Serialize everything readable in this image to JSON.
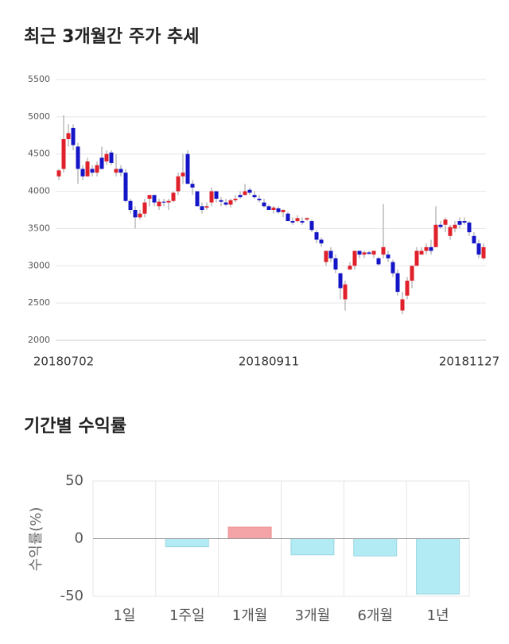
{
  "chart_data": [
    {
      "type": "candlestick",
      "title": "최근 3개월간 주가 추세",
      "categories": [
        null,
        "20180702",
        null,
        null,
        null,
        null,
        null,
        null,
        null,
        null,
        null,
        null,
        null,
        null,
        null,
        null,
        null,
        null,
        null,
        null,
        null,
        null,
        null,
        null,
        null,
        null,
        null,
        null,
        null,
        null,
        null,
        null,
        null,
        null,
        null,
        null,
        null,
        null,
        null,
        null,
        null,
        null,
        null,
        null,
        "20180911",
        null,
        null,
        null,
        null,
        null,
        null,
        null,
        null,
        null,
        null,
        null,
        null,
        null,
        null,
        null,
        null,
        null,
        null,
        null,
        null,
        null,
        null,
        null,
        null,
        null,
        null,
        null,
        null,
        null,
        null,
        null,
        null,
        null,
        null,
        null,
        null,
        null,
        null,
        null,
        null,
        null,
        "20181127",
        null,
        null,
        null
      ],
      "open": [
        4200,
        4300,
        4700,
        4850,
        4600,
        4300,
        4200,
        4300,
        4250,
        4450,
        4400,
        4520,
        4250,
        4300,
        4250,
        3870,
        3750,
        3650,
        3700,
        3900,
        3950,
        3800,
        3860,
        3850,
        3870,
        4000,
        4200,
        4500,
        4100,
        4000,
        3800,
        3780,
        3850,
        4000,
        3880,
        3850,
        3820,
        3880,
        3950,
        3950,
        4020,
        3950,
        3900,
        3850,
        3800,
        3750,
        3770,
        3720,
        3700,
        3600,
        3600,
        3600,
        3620,
        3600,
        3450,
        3350,
        3050,
        3200,
        3100,
        2900,
        2550,
        2950,
        3000,
        3200,
        3150,
        3180,
        3150,
        3100,
        3150,
        3150,
        3050,
        2900,
        2400,
        2600,
        2800,
        3000,
        3150,
        3200,
        3250,
        3250,
        3550,
        3550,
        3400,
        3500,
        3600,
        3600,
        3580,
        3400,
        3300,
        3100
      ],
      "high": [
        4300,
        5020,
        4900,
        4900,
        4650,
        4350,
        4450,
        4350,
        4400,
        4600,
        4550,
        4550,
        4500,
        4350,
        4300,
        3900,
        3800,
        3750,
        3900,
        3950,
        3950,
        3900,
        3900,
        3900,
        4000,
        4250,
        4500,
        4550,
        4150,
        4000,
        3850,
        3850,
        4050,
        4000,
        3920,
        3900,
        3900,
        3950,
        4000,
        4100,
        4050,
        4000,
        3950,
        3900,
        3820,
        3800,
        3800,
        3760,
        3720,
        3650,
        3680,
        3650,
        3650,
        3620,
        3480,
        3380,
        3200,
        3250,
        3150,
        2900,
        2800,
        3050,
        3200,
        3200,
        3200,
        3200,
        3200,
        3120,
        3830,
        3200,
        3080,
        2950,
        2650,
        2850,
        3000,
        3250,
        3250,
        3300,
        3350,
        3800,
        3600,
        3650,
        3550,
        3600,
        3650,
        3650,
        3600,
        3450,
        3350,
        3300
      ],
      "low": [
        4150,
        4250,
        4600,
        4550,
        4100,
        4150,
        4200,
        4200,
        4200,
        4300,
        4350,
        4350,
        4200,
        4200,
        3850,
        3700,
        3500,
        3620,
        3650,
        3800,
        3800,
        3750,
        3800,
        3750,
        3850,
        3950,
        4100,
        4100,
        3950,
        3800,
        3700,
        3750,
        3800,
        3850,
        3800,
        3800,
        3780,
        3850,
        3900,
        3950,
        3950,
        3900,
        3850,
        3780,
        3750,
        3700,
        3700,
        3650,
        3600,
        3550,
        3580,
        3550,
        3600,
        3450,
        3300,
        3250,
        3000,
        3050,
        2900,
        2550,
        2400,
        2950,
        2950,
        3100,
        3100,
        3150,
        3100,
        3000,
        3100,
        3050,
        2850,
        2600,
        2350,
        2550,
        2700,
        3000,
        3150,
        3150,
        3150,
        3250,
        3500,
        3450,
        3350,
        3450,
        3500,
        3550,
        3400,
        3300,
        3100,
        3080
      ],
      "close": [
        4280,
        4700,
        4780,
        4620,
        4300,
        4200,
        4400,
        4250,
        4350,
        4300,
        4500,
        4380,
        4300,
        4250,
        3870,
        3750,
        3650,
        3700,
        3850,
        3950,
        3850,
        3860,
        3850,
        3870,
        3980,
        4200,
        4250,
        4100,
        4050,
        3800,
        3750,
        3800,
        4000,
        3900,
        3860,
        3820,
        3880,
        3900,
        3920,
        4000,
        3980,
        3920,
        3880,
        3800,
        3750,
        3780,
        3720,
        3750,
        3600,
        3580,
        3640,
        3580,
        3640,
        3480,
        3350,
        3300,
        3200,
        3100,
        2950,
        2700,
        2750,
        3000,
        3200,
        3150,
        3180,
        3160,
        3200,
        3020,
        3250,
        3100,
        2900,
        2650,
        2550,
        2800,
        3000,
        3200,
        3200,
        3250,
        3200,
        3550,
        3520,
        3620,
        3520,
        3550,
        3550,
        3580,
        3450,
        3300,
        3150,
        3250
      ],
      "up_color": "#e0202a",
      "down_color": "#1515c8",
      "ylim": [
        2000,
        5500
      ],
      "yticks": [
        2000,
        2500,
        3000,
        3500,
        4000,
        4500,
        5000,
        5500
      ],
      "grid": true
    },
    {
      "type": "bar",
      "title": "기간별 수익률",
      "y_label": "수익률(%)",
      "categories": [
        "1일",
        "1주일",
        "1개월",
        "3개월",
        "6개월",
        "1년"
      ],
      "values": [
        0,
        -7,
        10,
        -14,
        -15,
        -48
      ],
      "positive_color": "#f4a4a6",
      "negative_color": "#b2ebf4",
      "ylim": [
        -50,
        50
      ],
      "yticks": [
        -50,
        0,
        50
      ],
      "grid": true
    }
  ]
}
